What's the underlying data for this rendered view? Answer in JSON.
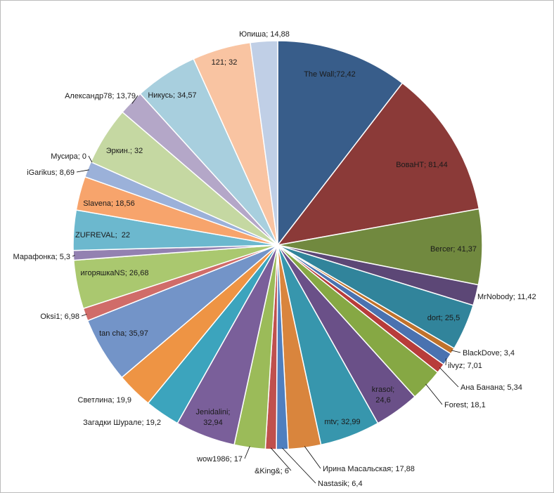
{
  "chart_data": {
    "type": "pie",
    "title": "",
    "legend": "none",
    "data_labels": "category; value",
    "slices": [
      {
        "label": "The Wall",
        "value": 72.42,
        "value_text": "72,42",
        "sep": ";",
        "color": "#385d8a"
      },
      {
        "label": "ВоваНТ",
        "value": 81.44,
        "value_text": "81,44",
        "sep": "; ",
        "color": "#8b3a38"
      },
      {
        "label": "Bercer",
        "value": 41.37,
        "value_text": "41,37",
        "sep": "; ",
        "color": "#71893f"
      },
      {
        "label": "MrNobody",
        "value": 11.42,
        "value_text": "11,42",
        "sep": "; ",
        "color": "#5c4776"
      },
      {
        "label": "dort",
        "value": 25.5,
        "value_text": "25,5",
        "sep": "; ",
        "color": "#31849b"
      },
      {
        "label": "BlackDove",
        "value": 3.4,
        "value_text": "3,4",
        "sep": "; ",
        "color": "#c0722b"
      },
      {
        "label": "ilvyz",
        "value": 7.01,
        "value_text": "7,01",
        "sep": "; ",
        "color": "#4a72b0"
      },
      {
        "label": "Ана Банана",
        "value": 5.34,
        "value_text": "5,34",
        "sep": "; ",
        "color": "#b83c3a"
      },
      {
        "label": "Forest",
        "value": 18.1,
        "value_text": "18,1",
        "sep": "; ",
        "color": "#86a844"
      },
      {
        "label": "krasol",
        "value": 24.6,
        "value_text": "24,6",
        "sep": "; ",
        "color": "#6a5088"
      },
      {
        "label": "mtv",
        "value": 32.99,
        "value_text": "32,99",
        "sep": "; ",
        "color": "#3796ad"
      },
      {
        "label": "Ирина Масальская",
        "value": 17.88,
        "value_text": "17,88",
        "sep": "; ",
        "color": "#d9853d"
      },
      {
        "label": "Nastasik",
        "value": 6.4,
        "value_text": "6,4",
        "sep": "; ",
        "color": "#4f7fbf"
      },
      {
        "label": "&King&",
        "value": 6,
        "value_text": "6",
        "sep": "; ",
        "color": "#c0504d"
      },
      {
        "label": "wow1986",
        "value": 17,
        "value_text": "17",
        "sep": "; ",
        "color": "#9bbb59"
      },
      {
        "label": "Jenidalini",
        "value": 32.94,
        "value_text": "32,94",
        "sep": "; ",
        "color": "#7a5f9a"
      },
      {
        "label": "Загадки Шурале",
        "value": 19.2,
        "value_text": "19,2",
        "sep": "; ",
        "color": "#3ca4bd"
      },
      {
        "label": "Светлина",
        "value": 19.9,
        "value_text": "19,9",
        "sep": "; ",
        "color": "#ee9444"
      },
      {
        "label": "tan cha",
        "value": 35.97,
        "value_text": "35,97",
        "sep": "; ",
        "color": "#7394c8"
      },
      {
        "label": "Oksi1",
        "value": 6.98,
        "value_text": "6,98",
        "sep": "; ",
        "color": "#d06c69"
      },
      {
        "label": "игоряшкаNS",
        "value": 26.68,
        "value_text": "26,68",
        "sep": "; ",
        "color": "#aac86f"
      },
      {
        "label": "Марафонка",
        "value": 5.3,
        "value_text": "5,3",
        "sep": "; ",
        "color": "#9381b1"
      },
      {
        "label": "ZUFREVAL",
        "value": 22,
        "value_text": "22",
        "sep": ";  ",
        "color": "#6cb8ce"
      },
      {
        "label": "Slavena",
        "value": 18.56,
        "value_text": "18,56",
        "sep": "; ",
        "color": "#f7a46c"
      },
      {
        "label": "iGarikus",
        "value": 8.69,
        "value_text": "8,69",
        "sep": "; ",
        "color": "#9bb1d9"
      },
      {
        "label": "Мусира",
        "value": 0,
        "value_text": "0",
        "sep": "; ",
        "color": "#e08b88"
      },
      {
        "label": "Эркин.",
        "value": 32,
        "value_text": "32",
        "sep": "; ",
        "color": "#c5d8a2"
      },
      {
        "label": "Александр78",
        "value": 13.79,
        "value_text": "13,79",
        "sep": "; ",
        "color": "#b4a7c8"
      },
      {
        "label": "Никусь",
        "value": 34.57,
        "value_text": "34,57",
        "sep": "; ",
        "color": "#a8cfde"
      },
      {
        "label": "121",
        "value": 32,
        "value_text": "32",
        "sep": "; ",
        "color": "#f9c4a2"
      },
      {
        "label": "Юпиша",
        "value": 14.88,
        "value_text": "14,88",
        "sep": "; ",
        "color": "#c0cfe6"
      }
    ]
  }
}
